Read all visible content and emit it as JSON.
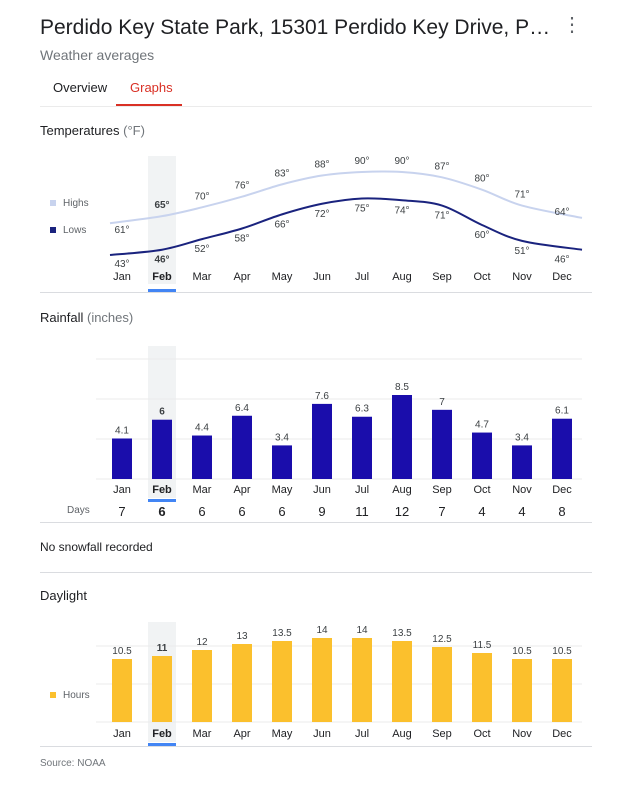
{
  "header": {
    "title": "Perdido Key State Park, 15301 Perdido Key Drive, Pe…",
    "subtitle": "Weather averages",
    "more_icon": "more-vert-icon"
  },
  "tabs": [
    {
      "label": "Overview",
      "active": false
    },
    {
      "label": "Graphs",
      "active": true
    }
  ],
  "selected_month": "Feb",
  "months": [
    "Jan",
    "Feb",
    "Mar",
    "Apr",
    "May",
    "Jun",
    "Jul",
    "Aug",
    "Sep",
    "Oct",
    "Nov",
    "Dec"
  ],
  "colors": {
    "accent_red": "#d93025",
    "highs": "#c8d3ee",
    "lows": "#1a237e",
    "rain": "#1a0dab",
    "daylight": "#fbc02d",
    "month_underline": "#4285f4"
  },
  "temperatures": {
    "title": "Temperatures",
    "unit": "(°F)",
    "legend": {
      "highs": "Highs",
      "lows": "Lows"
    }
  },
  "rainfall": {
    "title": "Rainfall",
    "unit": "(inches)",
    "days_label": "Days"
  },
  "snow_text": "No snowfall recorded",
  "daylight": {
    "title": "Daylight",
    "legend": "Hours"
  },
  "source": "Source: NOAA",
  "chart_data": [
    {
      "type": "line",
      "title": "Temperatures (°F)",
      "categories": [
        "Jan",
        "Feb",
        "Mar",
        "Apr",
        "May",
        "Jun",
        "Jul",
        "Aug",
        "Sep",
        "Oct",
        "Nov",
        "Dec"
      ],
      "series": [
        {
          "name": "Highs",
          "values": [
            61,
            65,
            70,
            76,
            83,
            88,
            90,
            90,
            87,
            80,
            71,
            64
          ],
          "labels": [
            "61°",
            "65°",
            "70°",
            "76°",
            "83°",
            "88°",
            "90°",
            "90°",
            "87°",
            "80°",
            "71°",
            "64°"
          ]
        },
        {
          "name": "Lows",
          "values": [
            43,
            46,
            52,
            58,
            66,
            72,
            75,
            74,
            71,
            60,
            51,
            46
          ],
          "labels": [
            "43°",
            "46°",
            "52°",
            "58°",
            "66°",
            "72°",
            "75°",
            "74°",
            "71°",
            "60°",
            "51°",
            "46°"
          ]
        }
      ],
      "legend": "left"
    },
    {
      "type": "bar",
      "title": "Rainfall (inches)",
      "categories": [
        "Jan",
        "Feb",
        "Mar",
        "Apr",
        "May",
        "Jun",
        "Jul",
        "Aug",
        "Sep",
        "Oct",
        "Nov",
        "Dec"
      ],
      "values": [
        4.1,
        6,
        4.4,
        6.4,
        3.4,
        7.6,
        6.3,
        8.5,
        7,
        4.7,
        3.4,
        6.1
      ],
      "labels": [
        "4.1",
        "6",
        "4.4",
        "6.4",
        "3.4",
        "7.6",
        "6.3",
        "8.5",
        "7",
        "4.7",
        "3.4",
        "6.1"
      ],
      "rain_days": [
        "7",
        "6",
        "6",
        "6",
        "6",
        "9",
        "11",
        "12",
        "7",
        "4",
        "4",
        "8"
      ],
      "grid": true
    },
    {
      "type": "bar",
      "title": "Daylight",
      "categories": [
        "Jan",
        "Feb",
        "Mar",
        "Apr",
        "May",
        "Jun",
        "Jul",
        "Aug",
        "Sep",
        "Oct",
        "Nov",
        "Dec"
      ],
      "series": [
        {
          "name": "Hours",
          "values": [
            10.5,
            11,
            12,
            13,
            13.5,
            14,
            14,
            13.5,
            12.5,
            11.5,
            10.5,
            10.5
          ]
        }
      ],
      "labels": [
        "10.5",
        "11",
        "12",
        "13",
        "13.5",
        "14",
        "14",
        "13.5",
        "12.5",
        "11.5",
        "10.5",
        "10.5"
      ],
      "grid": true,
      "legend": "left"
    }
  ]
}
